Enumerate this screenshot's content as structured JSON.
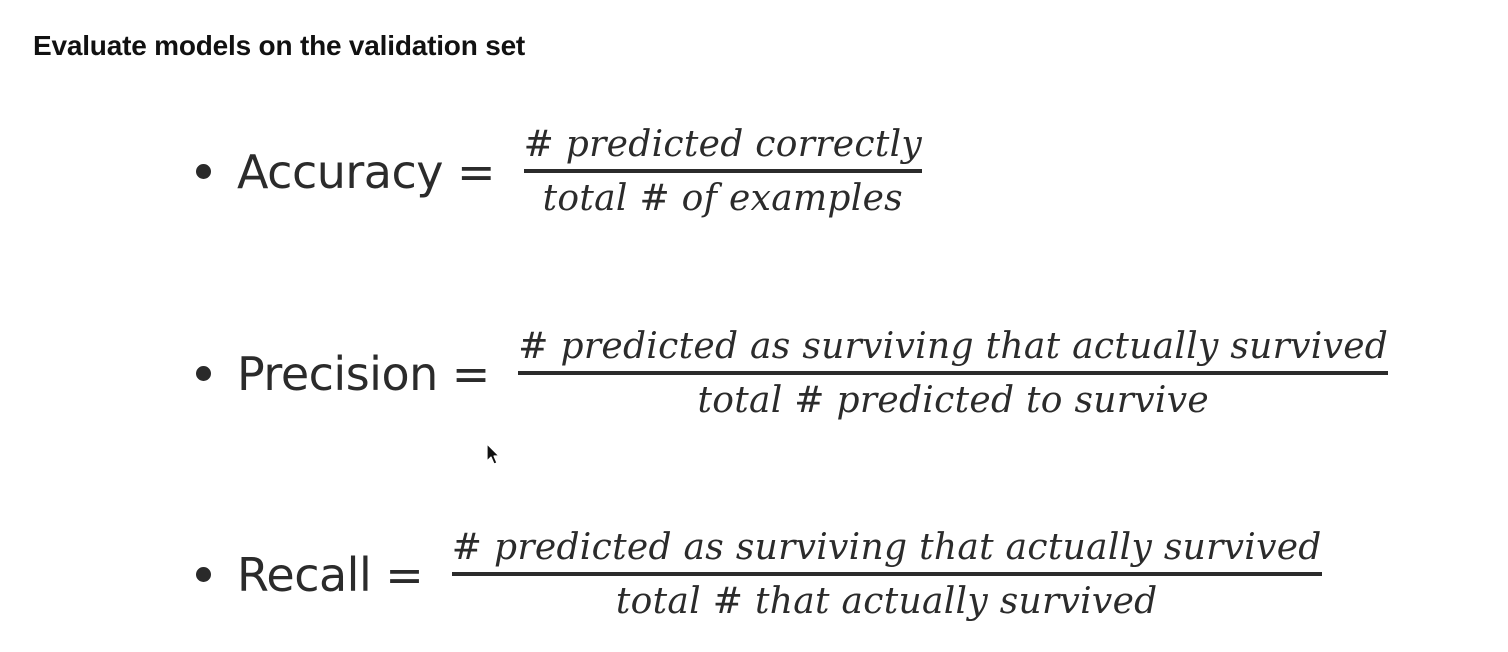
{
  "slide": {
    "title": "Evaluate models on the validation set",
    "metrics": [
      {
        "name": "Accuracy",
        "equals": "=",
        "numerator": "# predicted correctly",
        "denominator": "total # of examples"
      },
      {
        "name": "Precision",
        "equals": "=",
        "numerator": "# predicted as surviving that actually survived",
        "denominator": "total # predicted to survive"
      },
      {
        "name": "Recall",
        "equals": "=",
        "numerator": "# predicted as surviving that actually survived",
        "denominator": "total # that actually survived"
      }
    ]
  },
  "icons": {
    "bullet": "bullet-dot-icon",
    "cursor": "mouse-pointer-icon"
  }
}
